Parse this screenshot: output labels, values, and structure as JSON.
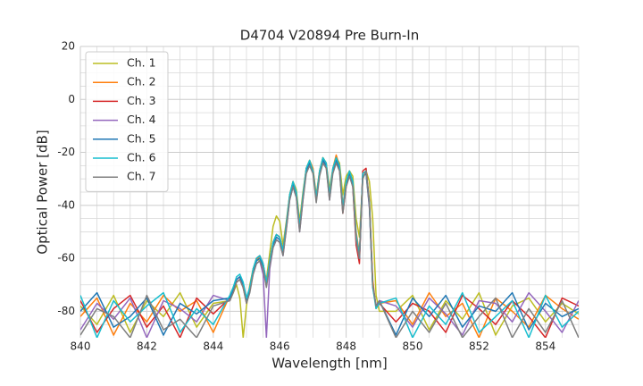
{
  "chart_data": {
    "type": "line",
    "title": "D4704 V20894 Pre Burn-In",
    "x_label": "Wavelength [nm]",
    "y_label": "Optical Power [dB]",
    "xlim": [
      840,
      855
    ],
    "ylim": [
      -90,
      20
    ],
    "xticks": [
      840,
      842,
      844,
      846,
      848,
      850,
      852,
      854
    ],
    "yticks": [
      20,
      0,
      -20,
      -40,
      -60,
      -80
    ],
    "x_minor_ticks": [
      840.5,
      841,
      841.5,
      842.5,
      843,
      843.5,
      844.5,
      845,
      845.5,
      846.5,
      847,
      847.5,
      848.5,
      849,
      849.5,
      850.5,
      851,
      851.5,
      852.5,
      853,
      853.5,
      854.5,
      855
    ],
    "y_minor_ticks": [
      15,
      10,
      5,
      -5,
      -10,
      -15,
      -25,
      -30,
      -35,
      -45,
      -50,
      -55,
      -65,
      -70,
      -75,
      -85
    ],
    "grid": true,
    "legend": "upper left",
    "x": [
      840,
      840.5,
      841,
      841.5,
      842,
      842.5,
      843,
      843.5,
      844,
      844.5,
      844.6,
      844.7,
      844.8,
      844.9,
      845.0,
      845.1,
      845.2,
      845.3,
      845.4,
      845.5,
      845.6,
      845.7,
      845.8,
      845.9,
      846.0,
      846.1,
      846.2,
      846.3,
      846.4,
      846.5,
      846.6,
      846.7,
      846.8,
      846.9,
      847.0,
      847.1,
      847.2,
      847.3,
      847.4,
      847.5,
      847.6,
      847.7,
      847.8,
      847.9,
      848.0,
      848.1,
      848.2,
      848.3,
      848.4,
      848.5,
      848.6,
      848.7,
      848.8,
      848.9,
      849.0,
      849.5,
      850,
      850.5,
      851,
      851.5,
      852,
      852.5,
      853,
      853.5,
      854,
      854.5,
      855
    ],
    "series": [
      {
        "name": "Ch. 1",
        "color": "#bcbd22",
        "values": [
          -78,
          -85,
          -74,
          -88,
          -76,
          -82,
          -73,
          -86,
          -77,
          -76,
          -73,
          -70,
          -75,
          -90,
          -78,
          -70,
          -64,
          -60,
          -61,
          -64,
          -68,
          -58,
          -48,
          -44,
          -46,
          -55,
          -46,
          -36,
          -31,
          -34,
          -46,
          -35,
          -26,
          -23,
          -26,
          -36,
          -27,
          -22,
          -24,
          -34,
          -26,
          -22,
          -24,
          -36,
          -29,
          -27,
          -29,
          -45,
          -52,
          -30,
          -27,
          -31,
          -45,
          -74,
          -80,
          -80,
          -74,
          -87,
          -76,
          -83,
          -73,
          -89,
          -78,
          -75,
          -84,
          -77,
          -81
        ]
      },
      {
        "name": "Ch. 2",
        "color": "#ff7f0e",
        "values": [
          -82,
          -75,
          -89,
          -77,
          -84,
          -74,
          -80,
          -76,
          -88,
          -74,
          -71,
          -68,
          -67,
          -71,
          -77,
          -71,
          -64,
          -61,
          -59,
          -62,
          -69,
          -61,
          -54,
          -51,
          -52,
          -57,
          -47,
          -36,
          -31,
          -35,
          -48,
          -36,
          -26,
          -23,
          -26,
          -37,
          -27,
          -22,
          -24,
          -36,
          -26,
          -21,
          -25,
          -40,
          -31,
          -27,
          -31,
          -50,
          -58,
          -28,
          -27,
          -38,
          -68,
          -79,
          -77,
          -76,
          -85,
          -73,
          -82,
          -77,
          -90,
          -75,
          -80,
          -86,
          -74,
          -79,
          -83
        ]
      },
      {
        "name": "Ch. 3",
        "color": "#d62728",
        "values": [
          -76,
          -88,
          -79,
          -74,
          -86,
          -78,
          -90,
          -75,
          -81,
          -75,
          -73,
          -69,
          -68,
          -71,
          -76,
          -71,
          -65,
          -60,
          -59,
          -62,
          -70,
          -61,
          -54,
          -51,
          -52,
          -57,
          -47,
          -37,
          -32,
          -36,
          -49,
          -37,
          -26,
          -24,
          -27,
          -38,
          -28,
          -23,
          -25,
          -37,
          -27,
          -23,
          -26,
          -43,
          -33,
          -28,
          -33,
          -55,
          -62,
          -27,
          -26,
          -39,
          -70,
          -78,
          -77,
          -84,
          -77,
          -80,
          -88,
          -74,
          -79,
          -85,
          -76,
          -82,
          -90,
          -75,
          -78
        ]
      },
      {
        "name": "Ch. 4",
        "color": "#9467bd",
        "values": [
          -87,
          -77,
          -83,
          -75,
          -90,
          -76,
          -79,
          -84,
          -74,
          -76,
          -72,
          -68,
          -67,
          -70,
          -75,
          -72,
          -66,
          -62,
          -61,
          -66,
          -90,
          -64,
          -56,
          -53,
          -54,
          -59,
          -49,
          -38,
          -33,
          -37,
          -50,
          -38,
          -27,
          -24,
          -27,
          -38,
          -28,
          -23,
          -25,
          -38,
          -27,
          -23,
          -26,
          -42,
          -32,
          -28,
          -32,
          -53,
          -60,
          -29,
          -28,
          -41,
          -71,
          -78,
          -76,
          -78,
          -86,
          -75,
          -81,
          -89,
          -76,
          -77,
          -84,
          -73,
          -80,
          -88,
          -76
        ]
      },
      {
        "name": "Ch. 5",
        "color": "#1f77b4",
        "values": [
          -80,
          -73,
          -86,
          -82,
          -75,
          -89,
          -77,
          -81,
          -76,
          -75,
          -72,
          -68,
          -67,
          -70,
          -76,
          -72,
          -65,
          -61,
          -60,
          -63,
          -70,
          -62,
          -55,
          -52,
          -53,
          -58,
          -48,
          -37,
          -32,
          -36,
          -49,
          -37,
          -27,
          -24,
          -27,
          -38,
          -28,
          -23,
          -25,
          -37,
          -27,
          -23,
          -26,
          -42,
          -32,
          -28,
          -32,
          -52,
          -60,
          -29,
          -28,
          -40,
          -70,
          -78,
          -76,
          -89,
          -75,
          -82,
          -74,
          -86,
          -78,
          -80,
          -73,
          -87,
          -77,
          -82,
          -79
        ]
      },
      {
        "name": "Ch. 6",
        "color": "#17becf",
        "values": [
          -74,
          -90,
          -76,
          -84,
          -78,
          -73,
          -88,
          -79,
          -85,
          -74,
          -71,
          -67,
          -66,
          -69,
          -75,
          -71,
          -64,
          -60,
          -59,
          -62,
          -69,
          -61,
          -54,
          -51,
          -52,
          -57,
          -47,
          -36,
          -31,
          -35,
          -48,
          -36,
          -26,
          -23,
          -27,
          -37,
          -27,
          -22,
          -24,
          -36,
          -26,
          -22,
          -25,
          -41,
          -31,
          -27,
          -31,
          -51,
          -59,
          -28,
          -27,
          -39,
          -71,
          -79,
          -77,
          -75,
          -90,
          -78,
          -85,
          -73,
          -88,
          -82,
          -76,
          -90,
          -74,
          -86,
          -80
        ]
      },
      {
        "name": "Ch. 7",
        "color": "#7f7f7f",
        "values": [
          -89,
          -79,
          -82,
          -90,
          -74,
          -87,
          -83,
          -90,
          -78,
          -76,
          -73,
          -69,
          -68,
          -71,
          -77,
          -73,
          -66,
          -62,
          -61,
          -64,
          -71,
          -63,
          -56,
          -53,
          -54,
          -59,
          -49,
          -38,
          -33,
          -37,
          -50,
          -38,
          -28,
          -25,
          -28,
          -39,
          -29,
          -24,
          -26,
          -38,
          -28,
          -24,
          -27,
          -43,
          -33,
          -29,
          -33,
          -53,
          -60,
          -30,
          -27,
          -40,
          -70,
          -78,
          -76,
          -90,
          -80,
          -88,
          -77,
          -90,
          -82,
          -75,
          -90,
          -79,
          -88,
          -76,
          -90
        ]
      }
    ]
  }
}
